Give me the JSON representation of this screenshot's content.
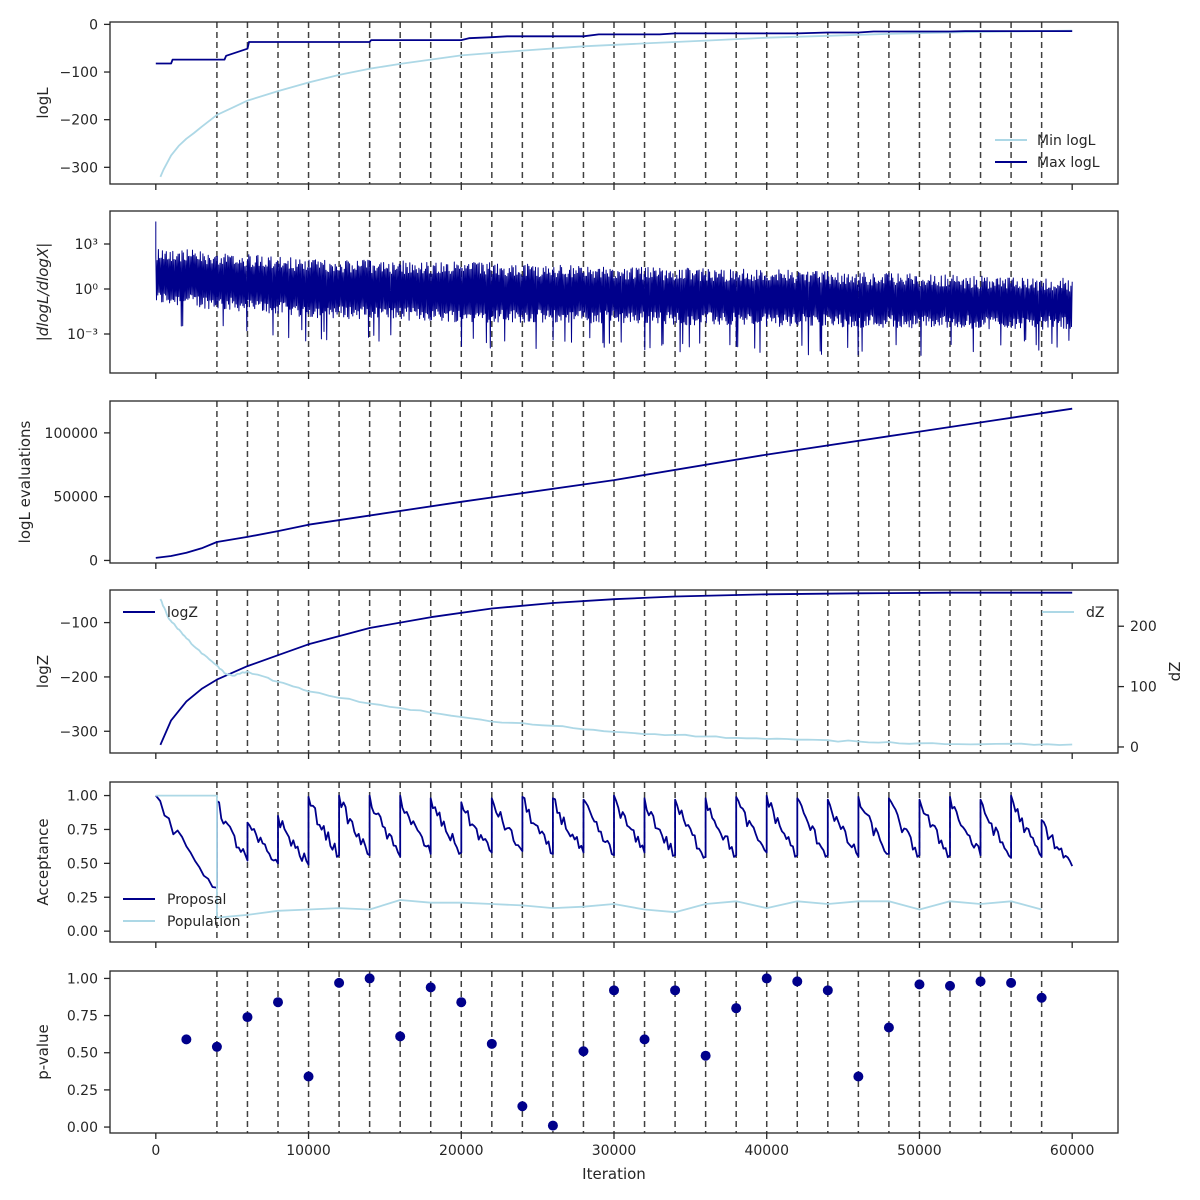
{
  "colors": {
    "dark": "#00008b",
    "light": "#add8e6",
    "vline": "#404040",
    "axis": "#262626"
  },
  "x_axis": {
    "label": "Iteration",
    "range": [
      -3000,
      63000
    ],
    "ticks": [
      0,
      10000,
      20000,
      30000,
      40000,
      50000,
      60000
    ]
  },
  "vlines": [
    4000,
    6000,
    8000,
    10000,
    12000,
    14000,
    16000,
    18000,
    20000,
    22000,
    24000,
    26000,
    28000,
    30000,
    32000,
    34000,
    36000,
    38000,
    40000,
    42000,
    44000,
    46000,
    48000,
    50000,
    52000,
    54000,
    56000,
    58000
  ],
  "chart_data": [
    {
      "type": "line",
      "ylabel": "logL",
      "ylim": [
        -335,
        5
      ],
      "yticks": [
        {
          "v": 0,
          "label": "0"
        },
        {
          "v": -100,
          "label": "−100"
        },
        {
          "v": -200,
          "label": "−200"
        },
        {
          "v": -300,
          "label": "−300"
        }
      ],
      "legend_position": "lower-right",
      "series": [
        {
          "name": "Min logL",
          "color_key": "light",
          "x": [
            300,
            500,
            1000,
            1500,
            2000,
            2500,
            3000,
            4000,
            5000,
            6000,
            8000,
            10000,
            12000,
            14000,
            16000,
            18000,
            20000,
            24000,
            28000,
            32000,
            36000,
            40000,
            44000,
            48000,
            52000,
            56000,
            60000
          ],
          "y": [
            -320,
            -305,
            -275,
            -255,
            -240,
            -228,
            -215,
            -190,
            -175,
            -160,
            -140,
            -122,
            -106,
            -93,
            -83,
            -74,
            -65,
            -55,
            -46,
            -40,
            -34,
            -28,
            -24,
            -20,
            -17,
            -15,
            -13
          ]
        },
        {
          "name": "Max logL",
          "color_key": "dark",
          "step": true,
          "x": [
            0,
            1000,
            1100,
            4500,
            4600,
            6000,
            6100,
            14000,
            14100,
            20000,
            20500,
            22000,
            23000,
            28000,
            29000,
            33000,
            34000,
            42000,
            44000,
            46000,
            47000,
            52000,
            53000,
            60000
          ],
          "y": [
            -82,
            -82,
            -74,
            -74,
            -66,
            -51,
            -37,
            -37,
            -33,
            -33,
            -29,
            -27,
            -25,
            -25,
            -21,
            -21,
            -19,
            -19,
            -17,
            -17,
            -15,
            -15,
            -14,
            -14
          ]
        }
      ]
    },
    {
      "type": "line",
      "ylabel": "|dlogL/dlogX|",
      "yscale": "log",
      "ylim_log10": [
        -5.6,
        5.2
      ],
      "yticks": [
        {
          "v": 3,
          "label": "10³"
        },
        {
          "v": 0,
          "label": "10⁰"
        },
        {
          "v": -3,
          "label": "10⁻³"
        }
      ],
      "series": [
        {
          "name": "",
          "color_key": "dark",
          "x": [
            0,
            10000,
            20000,
            30000,
            40000,
            50000,
            60000
          ],
          "y_upper_log10": [
            2.8,
            2.0,
            1.8,
            1.5,
            1.3,
            1.0,
            0.7
          ],
          "y_lower_log10": [
            -1.0,
            -1.9,
            -2.2,
            -2.3,
            -2.5,
            -2.6,
            -2.7
          ],
          "y_spike_min_log10": [
            -2.5,
            -3.5,
            -4.0,
            -4.0,
            -4.5,
            -4.5,
            -4.0
          ]
        }
      ]
    },
    {
      "type": "line",
      "ylabel": "logL evaluations",
      "ylim": [
        -2000,
        125000
      ],
      "yticks": [
        {
          "v": 100000,
          "label": "100000"
        },
        {
          "v": 50000,
          "label": "50000"
        },
        {
          "v": 0,
          "label": "0"
        }
      ],
      "series": [
        {
          "name": "",
          "color_key": "dark",
          "x": [
            0,
            1000,
            2000,
            3000,
            4000,
            6000,
            8000,
            10000,
            20000,
            30000,
            40000,
            50000,
            55000,
            60000
          ],
          "y": [
            2000,
            3500,
            6000,
            9500,
            14500,
            18500,
            23000,
            28000,
            46000,
            63000,
            83000,
            101000,
            110000,
            119000
          ]
        }
      ]
    },
    {
      "type": "line",
      "ylabel": "logZ",
      "ylabel_right": "dZ",
      "ylim": [
        -340,
        -40
      ],
      "ylim_right": [
        -10,
        260
      ],
      "yticks": [
        {
          "v": -100,
          "label": "−100"
        },
        {
          "v": -200,
          "label": "−200"
        },
        {
          "v": -300,
          "label": "−300"
        }
      ],
      "yticks_right": [
        {
          "v": 200,
          "label": "200"
        },
        {
          "v": 100,
          "label": "100"
        },
        {
          "v": 0,
          "label": "0"
        }
      ],
      "series": [
        {
          "name": "logZ",
          "color_key": "dark",
          "axis": "left",
          "legend_position": "upper-left",
          "x": [
            300,
            1000,
            2000,
            3000,
            4000,
            6000,
            8000,
            10000,
            14000,
            18000,
            22000,
            26000,
            30000,
            34000,
            40000,
            46000,
            52000,
            60000
          ],
          "y": [
            -325,
            -280,
            -245,
            -222,
            -205,
            -180,
            -160,
            -140,
            -110,
            -90,
            -74,
            -64,
            -57,
            -52,
            -48,
            -46,
            -45,
            -45
          ]
        },
        {
          "name": "dZ",
          "color_key": "light",
          "axis": "right",
          "legend_position": "upper-right",
          "x": [
            300,
            800,
            1300,
            2000,
            3000,
            4000,
            4500,
            5000,
            6000,
            8000,
            10000,
            14000,
            18000,
            22000,
            26000,
            30000,
            34000,
            38000,
            42000,
            46000,
            50000,
            55000,
            60000
          ],
          "y": [
            245,
            215,
            200,
            180,
            155,
            135,
            122,
            118,
            125,
            108,
            92,
            72,
            57,
            42,
            35,
            25,
            20,
            15,
            12,
            9,
            6,
            5,
            4
          ]
        }
      ]
    },
    {
      "type": "line",
      "ylabel": "Acceptance",
      "ylim": [
        -0.08,
        1.1
      ],
      "yticks": [
        {
          "v": 1.0,
          "label": "1.00"
        },
        {
          "v": 0.75,
          "label": "0.75"
        },
        {
          "v": 0.5,
          "label": "0.50"
        },
        {
          "v": 0.25,
          "label": "0.25"
        },
        {
          "v": 0.0,
          "label": "0.00"
        }
      ],
      "legend_position": "lower-left",
      "series": [
        {
          "name": "Proposal",
          "color_key": "dark",
          "sawtooth": true,
          "peaks_x": [
            0,
            4000,
            6000,
            8000,
            10000,
            12000,
            14000,
            16000,
            18000,
            20000,
            22000,
            24000,
            26000,
            28000,
            30000,
            32000,
            34000,
            36000,
            38000,
            40000,
            42000,
            44000,
            46000,
            48000,
            50000,
            52000,
            54000,
            56000,
            58000
          ],
          "peaks_y": [
            1.0,
            0.96,
            0.8,
            0.85,
            0.99,
            1.0,
            1.0,
            1.0,
            0.98,
            0.95,
            0.98,
            0.99,
            0.98,
            0.97,
            1.0,
            0.98,
            0.97,
            0.98,
            0.99,
            1.0,
            0.98,
            0.97,
            0.99,
            0.98,
            0.97,
            0.99,
            0.97,
            1.0,
            0.82
          ],
          "troughs_y": [
            0.32,
            0.52,
            0.5,
            0.49,
            0.56,
            0.56,
            0.55,
            0.57,
            0.58,
            0.58,
            0.59,
            0.57,
            0.58,
            0.56,
            0.58,
            0.56,
            0.55,
            0.56,
            0.58,
            0.56,
            0.56,
            0.55,
            0.57,
            0.56,
            0.56,
            0.56,
            0.54,
            0.55,
            0.48
          ]
        },
        {
          "name": "Population",
          "color_key": "light",
          "x": [
            0,
            4000,
            4000,
            6000,
            8000,
            10000,
            12000,
            14000,
            16000,
            18000,
            20000,
            22000,
            24000,
            26000,
            28000,
            30000,
            32000,
            34000,
            36000,
            38000,
            40000,
            42000,
            44000,
            46000,
            48000,
            50000,
            52000,
            54000,
            56000,
            58000
          ],
          "y": [
            1.0,
            1.0,
            0.1,
            0.12,
            0.15,
            0.16,
            0.17,
            0.16,
            0.23,
            0.21,
            0.21,
            0.2,
            0.19,
            0.17,
            0.18,
            0.2,
            0.16,
            0.14,
            0.2,
            0.22,
            0.17,
            0.22,
            0.2,
            0.22,
            0.22,
            0.16,
            0.22,
            0.2,
            0.22,
            0.16
          ]
        }
      ]
    },
    {
      "type": "scatter",
      "ylabel": "p-value",
      "ylim": [
        -0.04,
        1.05
      ],
      "yticks": [
        {
          "v": 1.0,
          "label": "1.00"
        },
        {
          "v": 0.75,
          "label": "0.75"
        },
        {
          "v": 0.5,
          "label": "0.50"
        },
        {
          "v": 0.25,
          "label": "0.25"
        },
        {
          "v": 0.0,
          "label": "0.00"
        }
      ],
      "series": [
        {
          "name": "",
          "color_key": "dark",
          "x": [
            2000,
            4000,
            6000,
            8000,
            10000,
            12000,
            14000,
            16000,
            18000,
            20000,
            22000,
            24000,
            26000,
            28000,
            30000,
            32000,
            34000,
            36000,
            38000,
            40000,
            42000,
            44000,
            46000,
            48000,
            50000,
            52000,
            54000,
            56000,
            58000
          ],
          "y": [
            0.59,
            0.54,
            0.74,
            0.84,
            0.34,
            0.97,
            1.0,
            0.61,
            0.94,
            0.84,
            0.56,
            0.14,
            0.01,
            0.51,
            0.92,
            0.59,
            0.92,
            0.48,
            0.8,
            1.0,
            0.98,
            0.92,
            0.34,
            0.67,
            0.96,
            0.95,
            0.98,
            0.97,
            0.87
          ]
        }
      ]
    }
  ]
}
